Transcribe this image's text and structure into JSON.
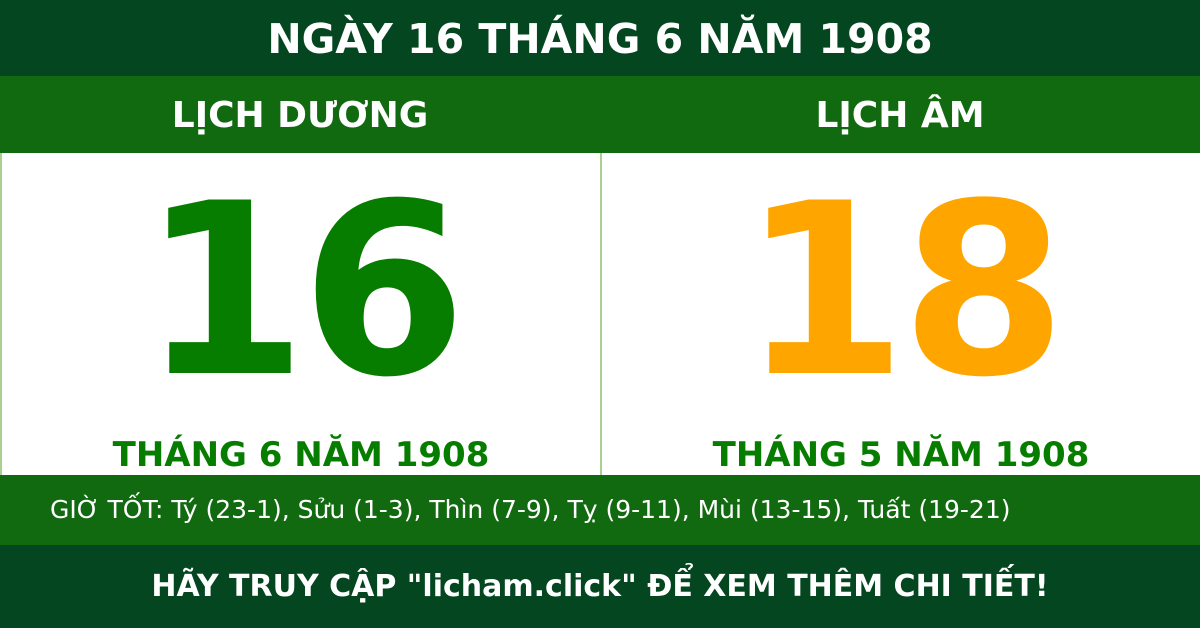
{
  "title": "NGÀY 16 THÁNG 6 NĂM 1908",
  "solar": {
    "heading": "LỊCH DƯƠNG",
    "day": "16",
    "month_year": "THÁNG 6 NĂM 1908",
    "color": "#077d00"
  },
  "lunar": {
    "heading": "LỊCH ÂM",
    "day": "18",
    "month_year": "THÁNG 5 NĂM 1908",
    "color": "#ffa500"
  },
  "good_hours": "GIỜ TỐT: Tý (23-1), Sửu (1-3), Thìn (7-9), Tỵ (9-11), Mùi (13-15), Tuất (19-21)",
  "footer": "HÃY TRUY CẬP \"licham.click\" ĐỂ XEM THÊM CHI TIẾT!",
  "colors": {
    "dark_green": "#03461f",
    "green": "#116a10"
  }
}
